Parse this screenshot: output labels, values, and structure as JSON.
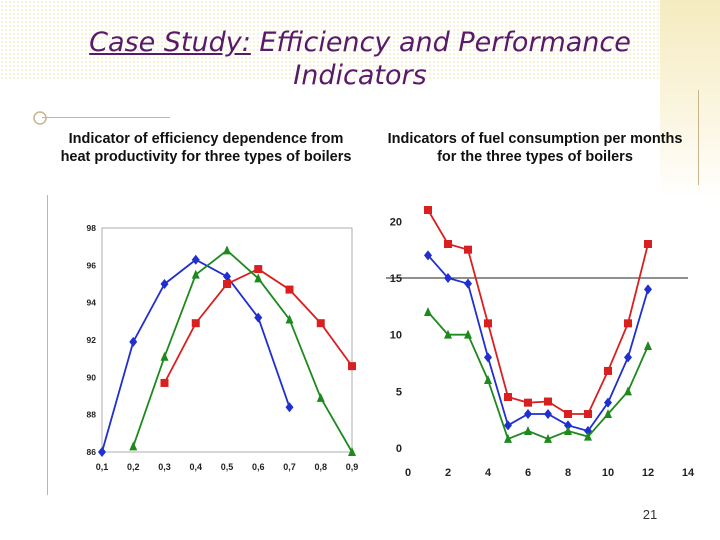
{
  "slide": {
    "title_underlined": "Case Study:",
    "title_rest": " Efficiency and Performance Indicators",
    "caption_left": "Indicator of efficiency dependence from heat productivity for three types of boilers",
    "caption_right": "Indicators of fuel consumption per months for the three types of boilers",
    "page_number": "21"
  },
  "chart_data": [
    {
      "type": "line",
      "title": "Indicator of efficiency dependence from heat productivity for three types of boilers",
      "xlabel": "",
      "ylabel": "",
      "x_ticks": [
        "0,1",
        "0,2",
        "0,3",
        "0,4",
        "0,5",
        "0,6",
        "0,7",
        "0,8",
        "0,9"
      ],
      "y_ticks": [
        "98",
        "96",
        "94",
        "92",
        "90",
        "88",
        "86"
      ],
      "xlim": [
        0.1,
        0.9
      ],
      "ylim": [
        86,
        98
      ],
      "series": [
        {
          "name": "blue",
          "color": "#1f2fd0",
          "marker": "diamond",
          "x": [
            0.1,
            0.2,
            0.3,
            0.4,
            0.5,
            0.6,
            0.7
          ],
          "y": [
            86.0,
            91.9,
            95.0,
            96.3,
            95.4,
            93.2,
            88.4
          ]
        },
        {
          "name": "red",
          "color": "#d82020",
          "marker": "square",
          "x": [
            0.3,
            0.4,
            0.5,
            0.6,
            0.7,
            0.8,
            0.9
          ],
          "y": [
            89.7,
            92.9,
            95.0,
            95.8,
            94.7,
            92.9,
            90.6
          ]
        },
        {
          "name": "green",
          "color": "#1e8a1e",
          "marker": "triangle",
          "x": [
            0.2,
            0.3,
            0.4,
            0.5,
            0.6,
            0.7,
            0.8,
            0.9
          ],
          "y": [
            86.3,
            91.1,
            95.5,
            96.8,
            95.3,
            93.1,
            88.9,
            86.0
          ]
        }
      ]
    },
    {
      "type": "line",
      "title": "Indicators of fuel consumption per months for the three types of boilers",
      "xlabel": "",
      "ylabel": "",
      "x_ticks": [
        "0",
        "2",
        "4",
        "6",
        "8",
        "10",
        "12",
        "14"
      ],
      "y_ticks": [
        "20",
        "15",
        "10",
        "5",
        "0"
      ],
      "xlim": [
        0,
        14
      ],
      "ylim": [
        0,
        21
      ],
      "reference_line": 15,
      "series": [
        {
          "name": "red",
          "color": "#d82020",
          "marker": "square",
          "x": [
            1,
            2,
            3,
            4,
            5,
            6,
            7,
            8,
            9,
            10,
            11,
            12
          ],
          "y": [
            21.0,
            18.0,
            17.5,
            11.0,
            4.5,
            4.0,
            4.1,
            3.0,
            3.0,
            6.8,
            11.0,
            18.0
          ]
        },
        {
          "name": "blue",
          "color": "#1f2fd0",
          "marker": "diamond",
          "x": [
            1,
            2,
            3,
            4,
            5,
            6,
            7,
            8,
            9,
            10,
            11,
            12
          ],
          "y": [
            17.0,
            15.0,
            14.5,
            8.0,
            2.0,
            3.0,
            3.0,
            2.0,
            1.5,
            4.0,
            8.0,
            14.0
          ]
        },
        {
          "name": "green",
          "color": "#1e8a1e",
          "marker": "triangle",
          "x": [
            1,
            2,
            3,
            4,
            5,
            6,
            7,
            8,
            9,
            10,
            11,
            12
          ],
          "y": [
            12.0,
            10.0,
            10.0,
            6.0,
            0.8,
            1.5,
            0.8,
            1.5,
            1.0,
            3.0,
            5.0,
            9.0
          ]
        }
      ]
    }
  ]
}
